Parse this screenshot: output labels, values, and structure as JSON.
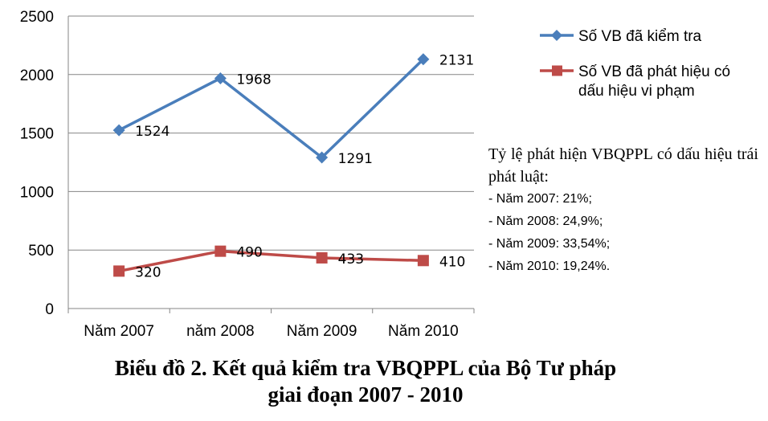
{
  "chart_data": {
    "type": "line",
    "categories": [
      "Năm 2007",
      "năm 2008",
      "Năm 2009",
      "Năm 2010"
    ],
    "y_ticks": [
      "0",
      "500",
      "1000",
      "1500",
      "2000",
      "2500"
    ],
    "ylim": [
      0,
      2500
    ],
    "grid": true,
    "legend_position": "right",
    "series": [
      {
        "name": "Số VB đã kiểm tra",
        "name_lines": [
          "Số VB đã kiểm tra"
        ],
        "values": [
          1524,
          1968,
          1291,
          2131
        ],
        "labels": [
          "1524",
          "1968",
          "1291",
          "2131"
        ],
        "color": "#4A7EBB",
        "marker": "diamond"
      },
      {
        "name": "Số VB đã phát hiệu có dấu hiệu vi phạm",
        "name_lines": [
          "Số VB đã phát hiệu có",
          "dấu hiệu vi phạm"
        ],
        "values": [
          320,
          490,
          433,
          410
        ],
        "labels": [
          "320",
          "490",
          "433",
          "410"
        ],
        "color": "#BE4B48",
        "marker": "square"
      }
    ]
  },
  "note": {
    "heading": "Tỷ lệ phát hiện VBQPPL có dấu hiệu trái phát luật:",
    "lines": [
      "- Năm 2007: 21%;",
      "- Năm 2008: 24,9%;",
      "- Năm 2009: 33,54%;",
      "- Năm 2010: 19,24%."
    ]
  },
  "caption": {
    "line1": "Biểu đồ 2. Kết quả kiểm tra VBQPPL của Bộ Tư pháp",
    "line2": "giai đoạn 2007 - 2010"
  },
  "colors": {
    "gridline": "#868686",
    "axis": "#868686"
  }
}
